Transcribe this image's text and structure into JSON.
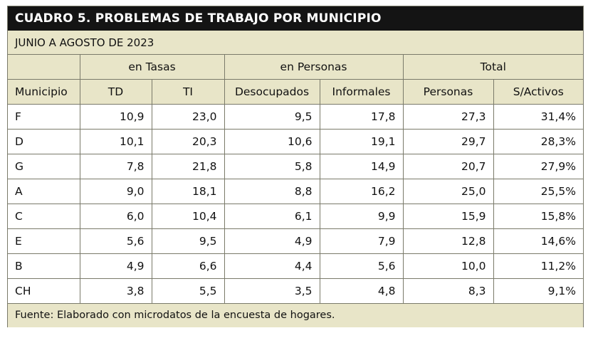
{
  "title": "CUADRO 5. PROBLEMAS DE TRABAJO POR MUNICIPIO",
  "subtitle": "JUNIO A AGOSTO DE 2023",
  "group_headers": [
    "en Tasas",
    "en Personas",
    "Total"
  ],
  "column_headers": [
    "Municipio",
    "TD",
    "TI",
    "Desocupados",
    "Informales",
    "Personas",
    "S/Activos"
  ],
  "rows": [
    [
      "F",
      "10,9",
      "23,0",
      "9,5",
      "17,8",
      "27,3",
      "31,4%"
    ],
    [
      "D",
      "10,1",
      "20,3",
      "10,6",
      "19,1",
      "29,7",
      "28,3%"
    ],
    [
      "G",
      "7,8",
      "21,8",
      "5,8",
      "14,9",
      "20,7",
      "27,9%"
    ],
    [
      "A",
      "9,0",
      "18,1",
      "8,8",
      "16,2",
      "25,0",
      "25,5%"
    ],
    [
      "C",
      "6,0",
      "10,4",
      "6,1",
      "9,9",
      "15,9",
      "15,8%"
    ],
    [
      "E",
      "5,6",
      "9,5",
      "4,9",
      "7,9",
      "12,8",
      "14,6%"
    ],
    [
      "B",
      "4,9",
      "6,6",
      "4,4",
      "5,6",
      "10,0",
      "11,2%"
    ],
    [
      "CH",
      "3,8",
      "5,5",
      "3,5",
      "4,8",
      "8,3",
      "9,1%"
    ]
  ],
  "footer": "Fuente: Elaborado con microdatos de la encuesta de hogares."
}
